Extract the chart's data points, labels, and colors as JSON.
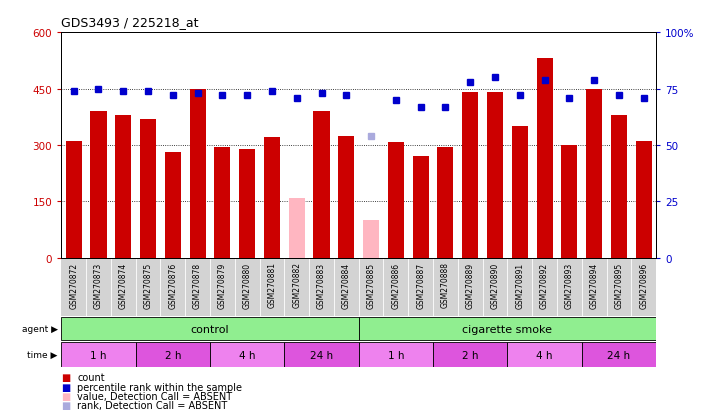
{
  "title": "GDS3493 / 225218_at",
  "samples": [
    "GSM270872",
    "GSM270873",
    "GSM270874",
    "GSM270875",
    "GSM270876",
    "GSM270878",
    "GSM270879",
    "GSM270880",
    "GSM270881",
    "GSM270882",
    "GSM270883",
    "GSM270884",
    "GSM270885",
    "GSM270886",
    "GSM270887",
    "GSM270888",
    "GSM270889",
    "GSM270890",
    "GSM270891",
    "GSM270892",
    "GSM270893",
    "GSM270894",
    "GSM270895",
    "GSM270896"
  ],
  "counts": [
    310,
    390,
    380,
    370,
    280,
    450,
    295,
    290,
    320,
    160,
    390,
    325,
    100,
    308,
    270,
    295,
    440,
    440,
    350,
    530,
    300,
    450,
    380,
    310
  ],
  "absent": [
    false,
    false,
    false,
    false,
    false,
    false,
    false,
    false,
    false,
    true,
    false,
    false,
    true,
    false,
    false,
    false,
    false,
    false,
    false,
    false,
    false,
    false,
    false,
    false
  ],
  "ranks": [
    74,
    75,
    74,
    74,
    72,
    73,
    72,
    72,
    74,
    71,
    73,
    72,
    54,
    70,
    67,
    67,
    78,
    80,
    72,
    79,
    71,
    79,
    72,
    71
  ],
  "rank_absent": [
    false,
    false,
    false,
    false,
    false,
    false,
    false,
    false,
    false,
    false,
    false,
    false,
    true,
    false,
    false,
    false,
    false,
    false,
    false,
    false,
    false,
    false,
    false,
    false
  ],
  "ylim_left": [
    0,
    600
  ],
  "ylim_right": [
    0,
    100
  ],
  "yticks_left": [
    0,
    150,
    300,
    450,
    600
  ],
  "yticks_right": [
    0,
    25,
    50,
    75,
    100
  ],
  "bar_color": "#cc0000",
  "absent_bar_color": "#ffb6c1",
  "rank_color": "#0000cc",
  "rank_absent_color": "#aaaadd",
  "plot_bg": "#ffffff",
  "label_bg": "#d3d3d3",
  "agent_color": "#90ee90",
  "time_colors": [
    "#ee82ee",
    "#dd55dd",
    "#ee82ee",
    "#dd55dd",
    "#ee82ee",
    "#dd55dd",
    "#ee82ee",
    "#dd55dd"
  ],
  "time_labels": [
    "1 h",
    "2 h",
    "4 h",
    "24 h",
    "1 h",
    "2 h",
    "4 h",
    "24 h"
  ],
  "time_starts": [
    0,
    3,
    6,
    9,
    12,
    15,
    18,
    21
  ],
  "time_ends": [
    3,
    6,
    9,
    12,
    15,
    18,
    21,
    24
  ],
  "legend": [
    {
      "label": "count",
      "color": "#cc0000"
    },
    {
      "label": "percentile rank within the sample",
      "color": "#0000cc"
    },
    {
      "label": "value, Detection Call = ABSENT",
      "color": "#ffb6c1"
    },
    {
      "label": "rank, Detection Call = ABSENT",
      "color": "#aaaadd"
    }
  ]
}
